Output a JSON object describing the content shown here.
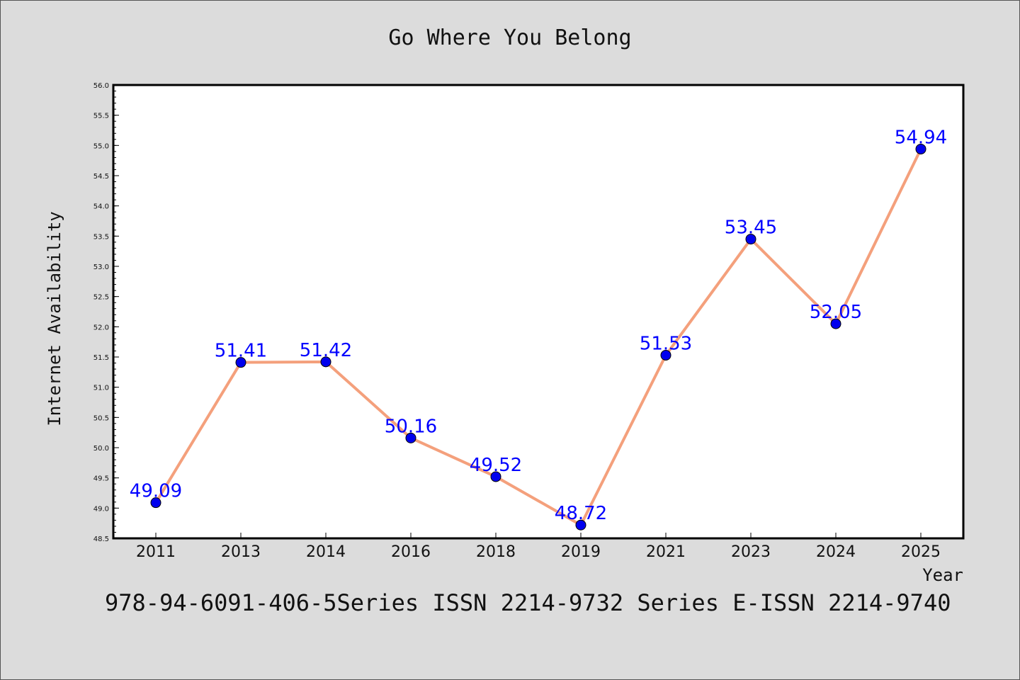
{
  "chart_data": {
    "type": "line",
    "title": "Go Where You Belong",
    "xlabel": "Year",
    "ylabel": "Internet Availability",
    "categories": [
      "2011",
      "2013",
      "2014",
      "2016",
      "2018",
      "2019",
      "2021",
      "2023",
      "2024",
      "2025"
    ],
    "values": [
      49.09,
      51.41,
      51.42,
      50.16,
      49.52,
      48.72,
      51.53,
      53.45,
      52.05,
      54.94
    ],
    "data_labels": [
      "49.09",
      "51.41",
      "51.42",
      "50.16",
      "49.52",
      "48.72",
      "51.53",
      "53.45",
      "52.05",
      "54.94"
    ],
    "ylim": [
      48.5,
      56.0
    ],
    "yticks": [
      "48.5",
      "49.0",
      "49.5",
      "50.0",
      "50.5",
      "51.0",
      "51.5",
      "52.0",
      "52.5",
      "53.0",
      "53.5",
      "54.0",
      "54.5",
      "55.0",
      "55.5",
      "56.0"
    ],
    "grid": false,
    "legend": "none",
    "colors": {
      "line": "#f4a07c",
      "marker": "#0000ee",
      "label": "#0000ff",
      "background": "#dcdcdc",
      "plot_area": "#ffffff"
    }
  },
  "caption": "978-94-6091-406-5Series ISSN 2214-9732 Series E-ISSN 2214-9740"
}
